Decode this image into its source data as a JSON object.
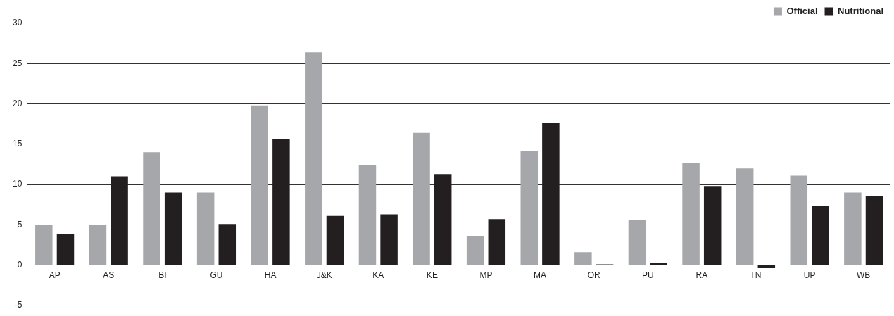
{
  "chart_data": {
    "type": "bar",
    "categories": [
      "AP",
      "AS",
      "BI",
      "GU",
      "HA",
      "J&K",
      "KA",
      "KE",
      "MP",
      "MA",
      "OR",
      "PU",
      "RA",
      "TN",
      "UP",
      "WB"
    ],
    "series": [
      {
        "name": "Official",
        "color": "#a6a7aa",
        "values": [
          5.0,
          5.0,
          14.0,
          9.0,
          19.8,
          26.4,
          12.4,
          16.4,
          3.6,
          14.2,
          1.6,
          5.6,
          12.7,
          12.0,
          11.1,
          9.0
        ]
      },
      {
        "name": "Nutritional",
        "color": "#231f20",
        "values": [
          3.8,
          11.0,
          9.0,
          5.1,
          15.6,
          6.1,
          6.3,
          11.3,
          5.7,
          17.6,
          0.1,
          0.3,
          9.8,
          -0.4,
          7.3,
          8.6
        ]
      }
    ],
    "ylim": [
      -5,
      30
    ],
    "yticks": [
      -5,
      0,
      5,
      10,
      15,
      20,
      25,
      30
    ],
    "grid": "y",
    "legend": "top right"
  }
}
